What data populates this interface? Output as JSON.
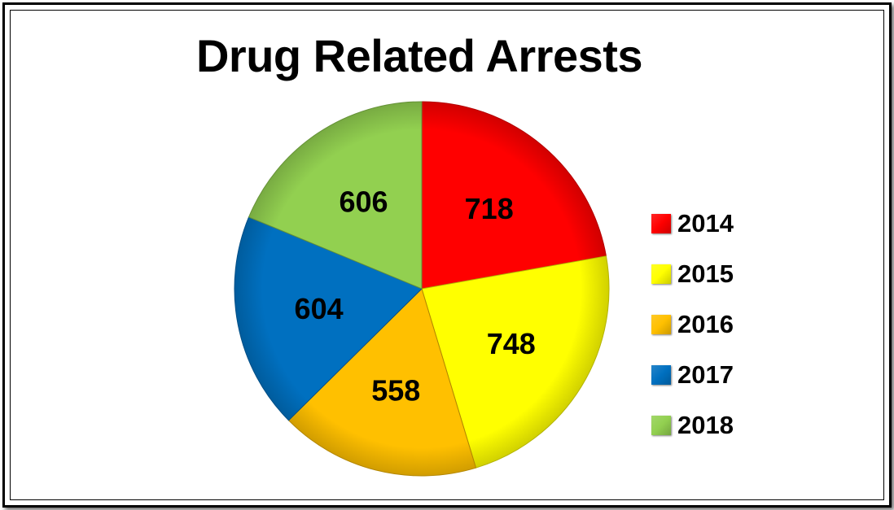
{
  "chart_data": {
    "type": "pie",
    "title": "Drug Related Arrests",
    "categories": [
      "2014",
      "2015",
      "2016",
      "2017",
      "2018"
    ],
    "values": [
      718,
      748,
      558,
      604,
      606
    ],
    "colors": [
      "#ff0000",
      "#ffff00",
      "#ffc000",
      "#0070c0",
      "#92d050"
    ],
    "legend_position": "right"
  }
}
